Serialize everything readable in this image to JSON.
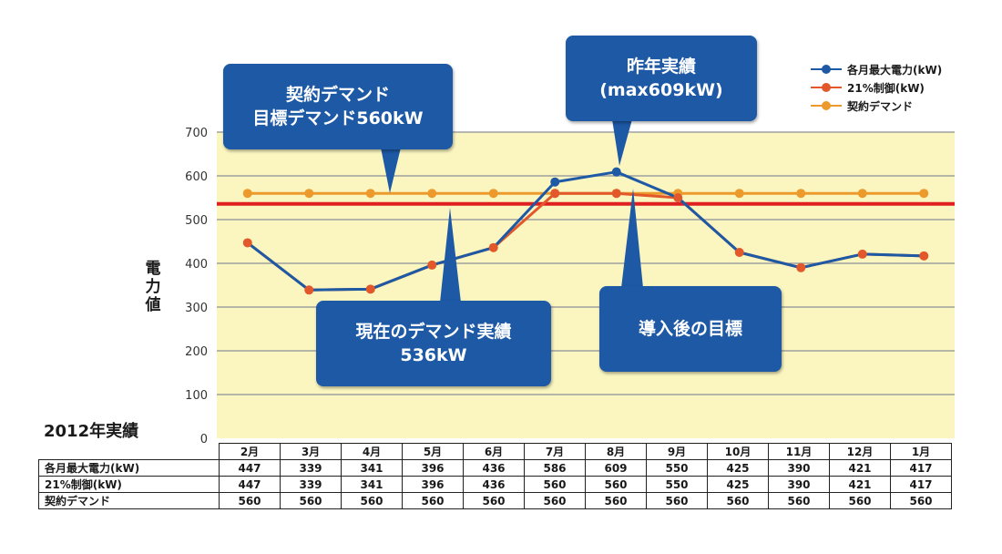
{
  "chart_data": {
    "type": "line",
    "year_label": "2012年実績",
    "ylabel": "電力値",
    "ylim": [
      0,
      700
    ],
    "yticks": [
      0,
      100,
      200,
      300,
      400,
      500,
      600,
      700
    ],
    "categories": [
      "2月",
      "3月",
      "4月",
      "5月",
      "6月",
      "7月",
      "8月",
      "9月",
      "10月",
      "11月",
      "12月",
      "1月"
    ],
    "series": [
      {
        "name": "各月最大電力(kW)",
        "color": "#1d59a5",
        "values": [
          447,
          339,
          341,
          396,
          436,
          586,
          609,
          550,
          425,
          390,
          421,
          417
        ]
      },
      {
        "name": "21%制御(kW)",
        "color": "#e2582a",
        "values": [
          447,
          339,
          341,
          396,
          436,
          560,
          560,
          550,
          425,
          390,
          421,
          417
        ]
      },
      {
        "name": "契約デマンド",
        "color": "#ec9a2c",
        "values": [
          560,
          560,
          560,
          560,
          560,
          560,
          560,
          560,
          560,
          560,
          560,
          560
        ]
      }
    ],
    "target_line": {
      "value": 536,
      "color": "#e02020"
    },
    "plot_background": "#fbf6c0",
    "grid": true,
    "legend_position": "top-right"
  },
  "callouts": [
    {
      "text": "契約デマンド\n目標デマンド560kW"
    },
    {
      "text": "昨年実績\n(max609kW)"
    },
    {
      "text": "現在のデマンド実績\n536kW"
    },
    {
      "text": "導入後の目標"
    }
  ],
  "table": {
    "rows": [
      {
        "label": "各月最大電力(kW)",
        "values": [
          "447",
          "339",
          "341",
          "396",
          "436",
          "586",
          "609",
          "550",
          "425",
          "390",
          "421",
          "417"
        ]
      },
      {
        "label": "21%制御(kW)",
        "values": [
          "447",
          "339",
          "341",
          "396",
          "436",
          "560",
          "560",
          "550",
          "425",
          "390",
          "421",
          "417"
        ]
      },
      {
        "label": "契約デマンド",
        "values": [
          "560",
          "560",
          "560",
          "560",
          "560",
          "560",
          "560",
          "560",
          "560",
          "560",
          "560",
          "560"
        ]
      }
    ]
  }
}
